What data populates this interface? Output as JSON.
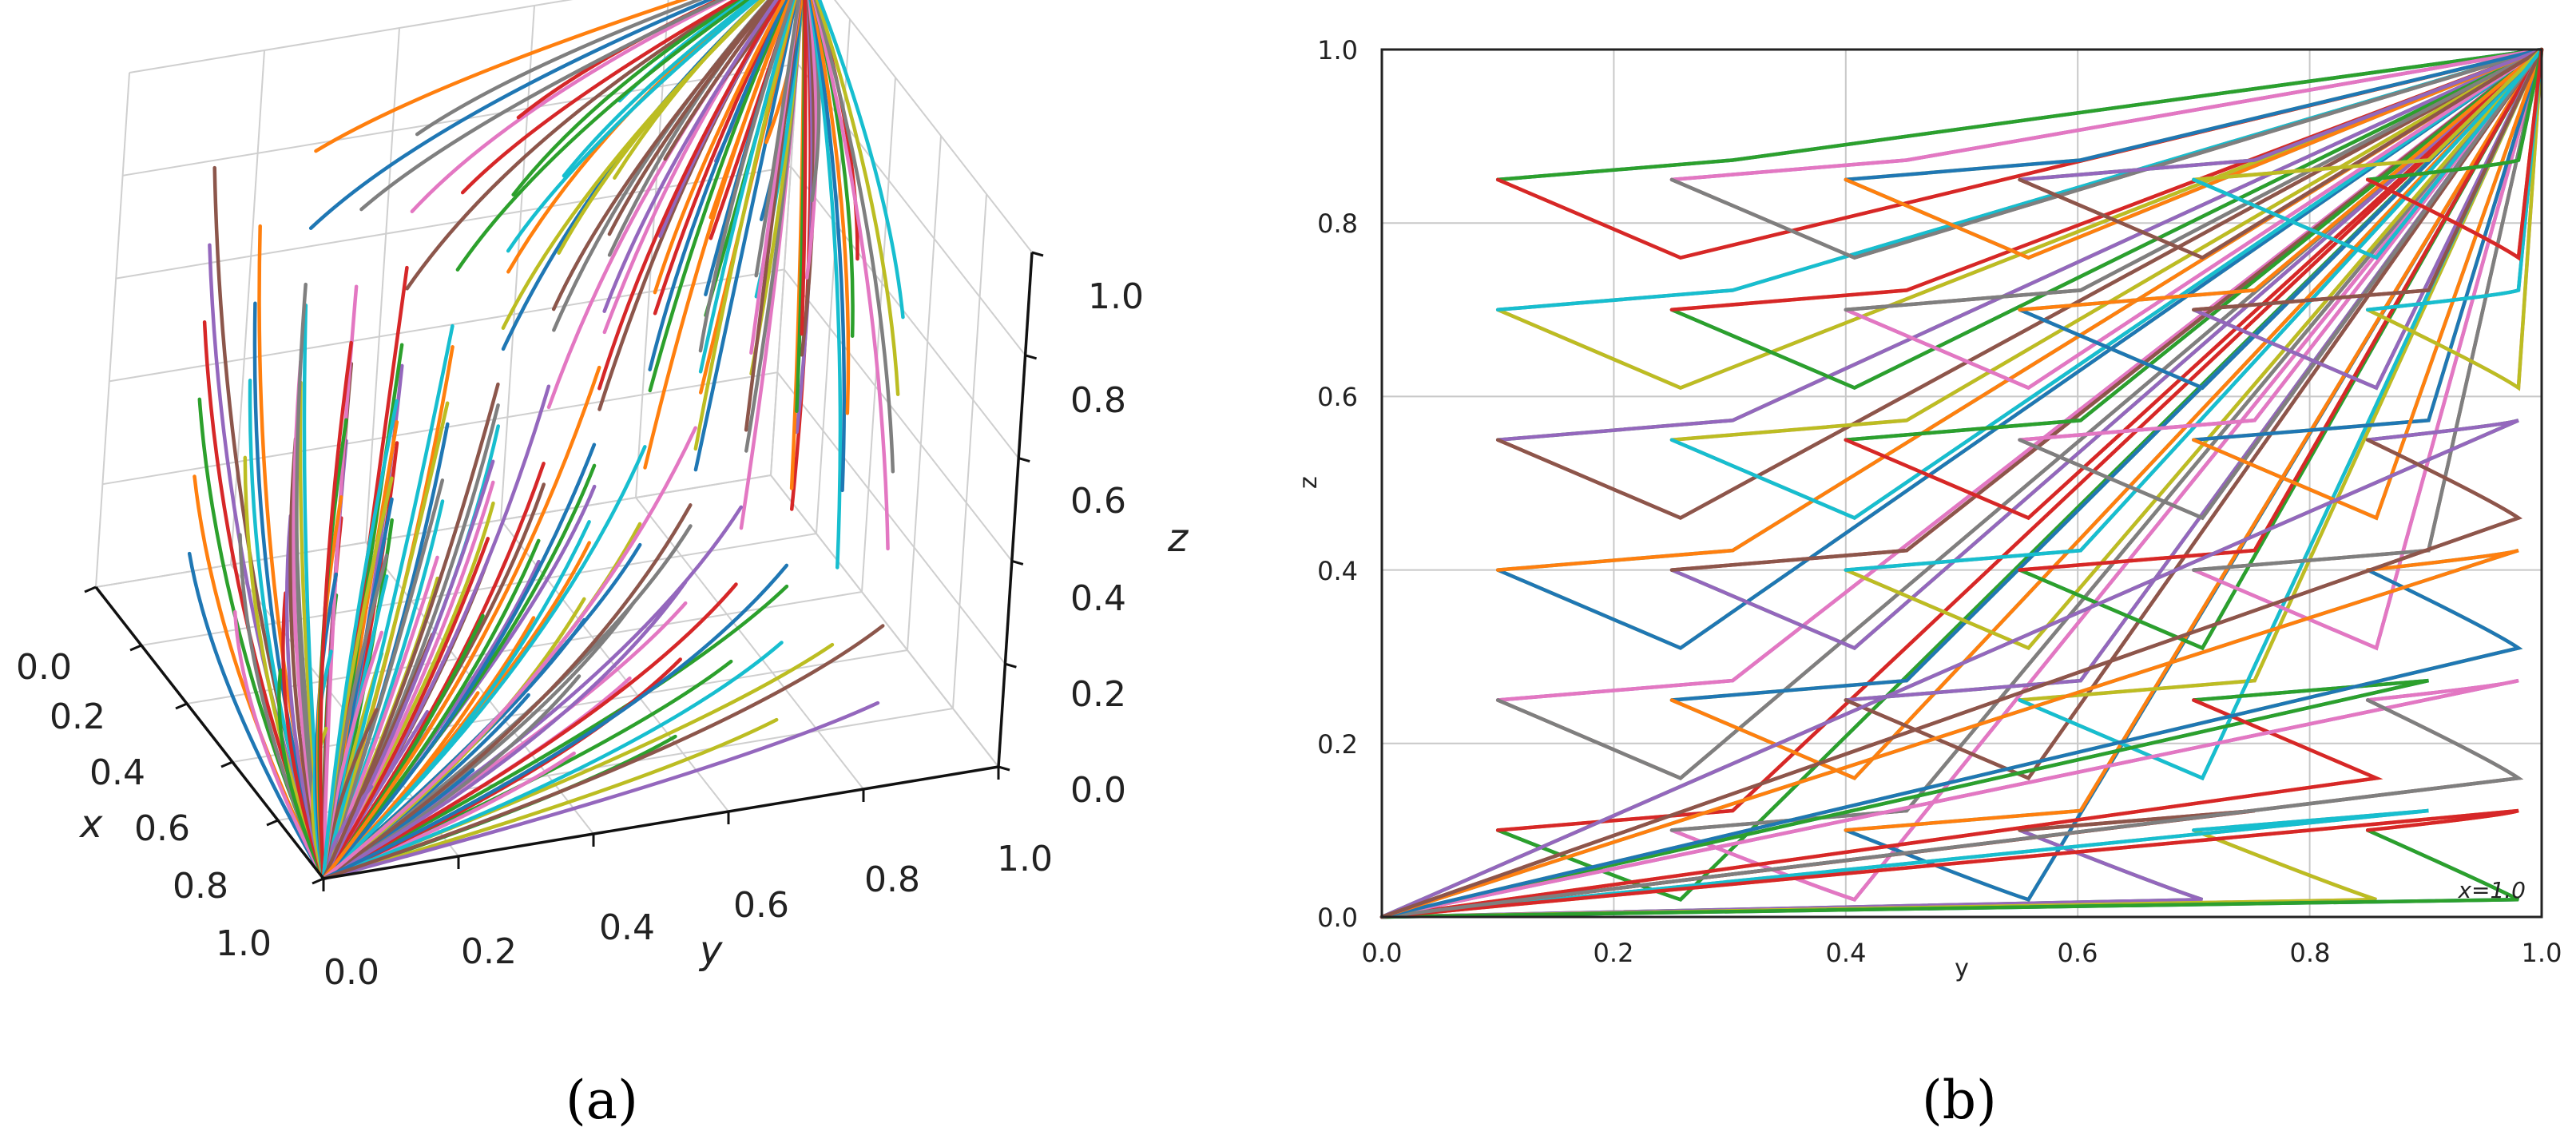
{
  "panel_a": {
    "caption": "(a)",
    "axis_labels": {
      "x": "x",
      "y": "y",
      "z": "z"
    },
    "x_ticks": [
      "0.0",
      "0.2",
      "0.4",
      "0.6",
      "0.8",
      "1.0"
    ],
    "y_ticks": [
      "0.0",
      "0.2",
      "0.4",
      "0.6",
      "0.8",
      "1.0"
    ],
    "z_ticks": [
      "0.0",
      "0.2",
      "0.4",
      "0.6",
      "0.8",
      "1.0"
    ]
  },
  "panel_b": {
    "caption": "(b)",
    "xlabel": "y",
    "ylabel": "z",
    "annotation": "x=1.0",
    "x_ticks": [
      "0.0",
      "0.2",
      "0.4",
      "0.6",
      "0.8",
      "1.0"
    ],
    "y_ticks": [
      "0.0",
      "0.2",
      "0.4",
      "0.6",
      "0.8",
      "1.0"
    ]
  },
  "series_colors": [
    "#1f77b4",
    "#ff7f0e",
    "#2ca02c",
    "#d62728",
    "#9467bd",
    "#8c564b",
    "#e377c2",
    "#7f7f7f",
    "#bcbd22",
    "#17becf"
  ],
  "chart_data": [
    {
      "type": "line",
      "panel": "a",
      "projection": "3d",
      "x_axis": "x",
      "y_axis": "y",
      "z_axis": "z",
      "xlim": [
        0,
        1
      ],
      "ylim": [
        0,
        1
      ],
      "zlim": [
        0,
        1
      ],
      "grid": true,
      "attractors": [
        [
          1,
          0,
          0
        ],
        [
          0,
          1,
          1
        ]
      ],
      "start_y_values": [
        0.1,
        0.25,
        0.4,
        0.55,
        0.7,
        0.85
      ],
      "start_z_values": [
        0.1,
        0.25,
        0.4,
        0.55,
        0.7,
        0.85
      ],
      "start_x_values": [
        0.1,
        0.3,
        0.5,
        0.7,
        0.9
      ]
    },
    {
      "type": "line",
      "panel": "b",
      "fixed": {
        "x": 1.0
      },
      "x_axis": "y",
      "y_axis": "z",
      "xlim": [
        0,
        1
      ],
      "ylim": [
        0,
        1
      ],
      "grid": true,
      "attractors": [
        [
          0,
          0
        ],
        [
          1,
          1
        ]
      ],
      "start_y_values": [
        0.1,
        0.25,
        0.4,
        0.55,
        0.7,
        0.85
      ],
      "start_z_values": [
        0.1,
        0.25,
        0.4,
        0.55,
        0.7,
        0.85
      ]
    }
  ]
}
